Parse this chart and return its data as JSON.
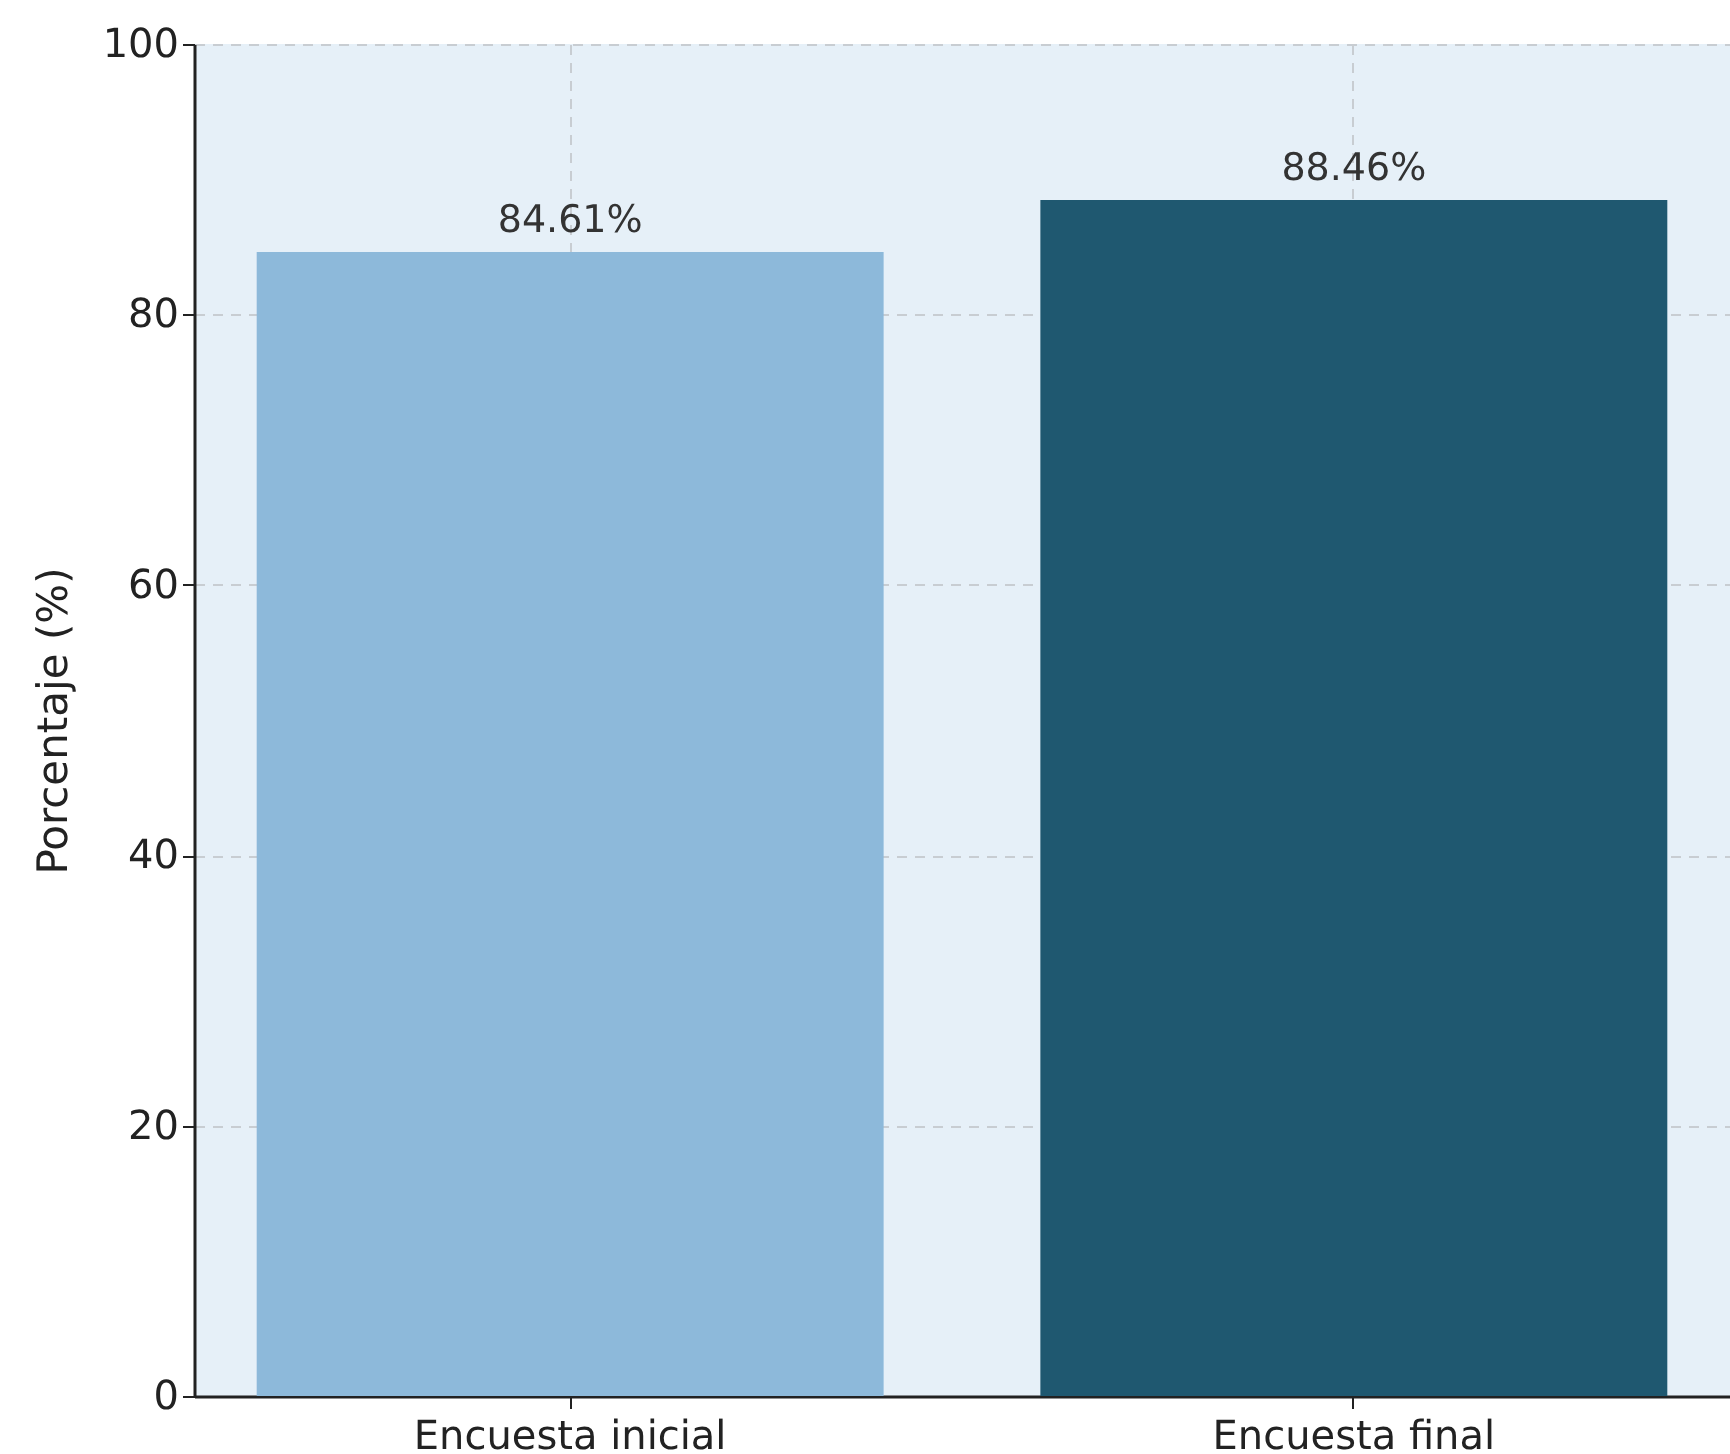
{
  "chart_data": {
    "type": "bar",
    "ylabel": "Porcentaje (%)",
    "categories": [
      "Encuesta inicial",
      "Encuesta final"
    ],
    "values": [
      84.61,
      88.46
    ],
    "colors": [
      "#8db9da",
      "#1f5870"
    ],
    "value_labels": [
      "84.61%",
      "88.46%"
    ],
    "ylim": [
      0,
      100
    ],
    "yticks": [
      0,
      20,
      40,
      60,
      80,
      100
    ],
    "grid": true
  }
}
